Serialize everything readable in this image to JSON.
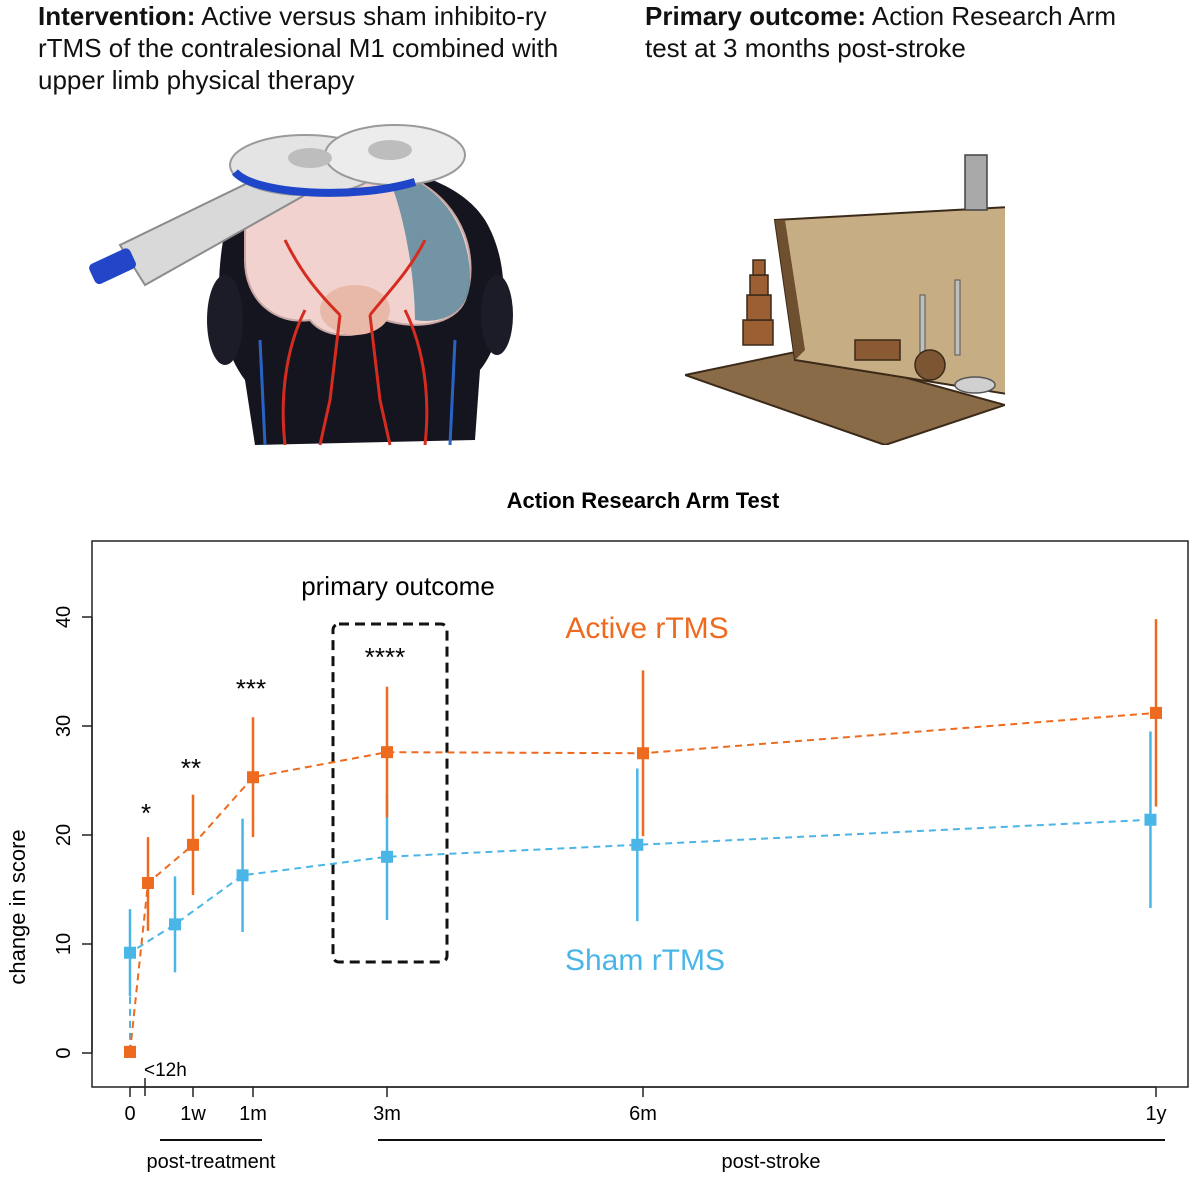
{
  "header": {
    "intervention_label": "Intervention:",
    "intervention_text": "Active versus sham inhibito-ry rTMS of the contralesional M1 combined with upper limb physical therapy",
    "outcome_label": "Primary outcome:",
    "outcome_text": "Action Research Arm test at 3 months post-stroke"
  },
  "colors": {
    "active": "#ee6a1f",
    "sham": "#4ab6e8",
    "box": "#111111"
  },
  "chart_data": {
    "type": "line",
    "title": "Action Research Arm Test",
    "ylabel": "change in score",
    "xlabel": "",
    "ylim": [
      -3,
      46
    ],
    "yticks": [
      0,
      10,
      20,
      30,
      40
    ],
    "x_ticks": [
      {
        "label": "0",
        "pos": 0
      },
      {
        "label": "1w",
        "pos": 7
      },
      {
        "label": "1m",
        "pos": 30
      },
      {
        "label": "3m",
        "pos": 90
      },
      {
        "label": "6m",
        "pos": 180
      },
      {
        "label": "1y",
        "pos": 365
      }
    ],
    "extra_tick": {
      "label": "<12h",
      "pos": 2
    },
    "series": [
      {
        "name": "Active rTMS",
        "points": [
          {
            "x": 0,
            "y": 0.1,
            "lo": 0.1,
            "hi": 0.1
          },
          {
            "x": 2,
            "y": 15.6,
            "lo": 11.2,
            "hi": 19.8
          },
          {
            "x": 7,
            "y": 19.1,
            "lo": 14.5,
            "hi": 23.7
          },
          {
            "x": 30,
            "y": 25.3,
            "lo": 19.8,
            "hi": 30.8
          },
          {
            "x": 90,
            "y": 27.6,
            "lo": 21.6,
            "hi": 33.6
          },
          {
            "x": 180,
            "y": 27.5,
            "lo": 19.9,
            "hi": 35.1
          },
          {
            "x": 365,
            "y": 31.2,
            "lo": 22.6,
            "hi": 39.8
          }
        ]
      },
      {
        "name": "Sham rTMS",
        "points": [
          {
            "x": 0,
            "y": 0.1,
            "lo": 0.1,
            "hi": 0.1
          },
          {
            "x": 0,
            "y": 9.2,
            "lo": 5.2,
            "hi": 13.2
          },
          {
            "x": 5,
            "y": 11.8,
            "lo": 7.4,
            "hi": 16.2
          },
          {
            "x": 26,
            "y": 16.3,
            "lo": 11.1,
            "hi": 21.5
          },
          {
            "x": 90,
            "y": 18.0,
            "lo": 12.2,
            "hi": 23.8
          },
          {
            "x": 178,
            "y": 19.1,
            "lo": 12.1,
            "hi": 26.1
          },
          {
            "x": 363,
            "y": 21.4,
            "lo": 13.3,
            "hi": 29.5
          }
        ]
      }
    ],
    "significance": [
      {
        "label": "*",
        "x": 2,
        "y": 21.2
      },
      {
        "label": "**",
        "x": 7,
        "y": 25.3
      },
      {
        "label": "***",
        "x": 30,
        "y": 32.6
      },
      {
        "label": "****",
        "x": 90,
        "y": 35.5
      }
    ],
    "annotations": {
      "primary_outcome": "primary outcome",
      "active_label": "Active rTMS",
      "sham_label": "Sham rTMS",
      "post_treatment": "post-treatment",
      "post_stroke": "post-stroke"
    }
  }
}
